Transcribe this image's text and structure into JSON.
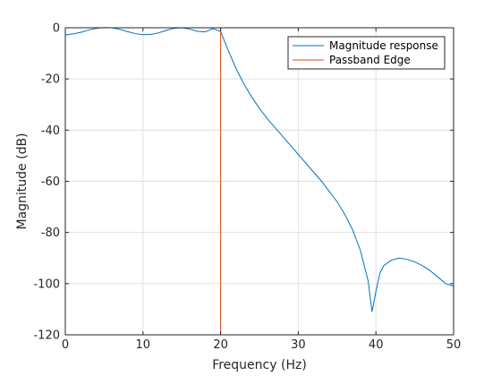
{
  "chart_data": {
    "type": "line",
    "title": "",
    "xlabel": "Frequency (Hz)",
    "ylabel": "Magnitude (dB)",
    "xlim": [
      0,
      50
    ],
    "ylim": [
      -120,
      0
    ],
    "xticks": [
      0,
      10,
      20,
      30,
      40,
      50
    ],
    "yticks": [
      0,
      -20,
      -40,
      -60,
      -80,
      -100,
      -120
    ],
    "grid": true,
    "legend_position": "top-right",
    "series": [
      {
        "name": "Magnitude response",
        "color": "#0072BD",
        "x": [
          0,
          1,
          2,
          3,
          4,
          5,
          6,
          7,
          8,
          9,
          10,
          11,
          12,
          13,
          14,
          15,
          16,
          17,
          18,
          19,
          20,
          21,
          22,
          23,
          24,
          25,
          26,
          27,
          28,
          29,
          30,
          31,
          32,
          33,
          34,
          35,
          36,
          37,
          38,
          39,
          39.5,
          40,
          40.5,
          41,
          42,
          43,
          44,
          45,
          46,
          47,
          48,
          49,
          50
        ],
        "y": [
          -2.8,
          -2.4,
          -1.8,
          -0.9,
          -0.2,
          0.1,
          0.0,
          -0.6,
          -1.5,
          -2.3,
          -2.7,
          -2.6,
          -2.0,
          -1.0,
          -0.2,
          0.0,
          -0.5,
          -1.4,
          -1.6,
          -0.3,
          -1.5,
          -9,
          -16,
          -22,
          -27,
          -31.5,
          -35.5,
          -39,
          -42.5,
          -46,
          -49.5,
          -53,
          -56.5,
          -60,
          -64,
          -68,
          -73,
          -79,
          -87,
          -99,
          -111,
          -103,
          -96,
          -93,
          -90.8,
          -90,
          -90.5,
          -91.5,
          -93,
          -95,
          -97.5,
          -100,
          -101
        ]
      },
      {
        "name": "Passband Edge",
        "color": "#D95319",
        "x": [
          20,
          20
        ],
        "y": [
          0,
          -120
        ]
      }
    ]
  }
}
